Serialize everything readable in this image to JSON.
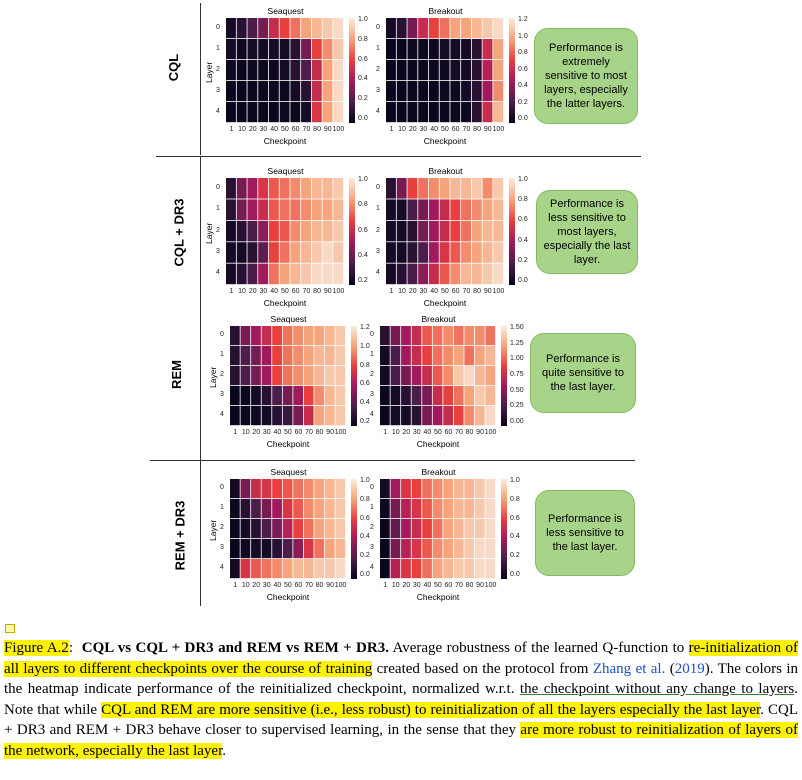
{
  "figure": {
    "rows": [
      {
        "label": "CQL",
        "note": "Performance is extremely sensitive to most layers, especially the latter layers.",
        "panels": [
          {
            "title": "Seaquest",
            "cbar_ticks": [
              "1.0",
              "0.8",
              "0.6",
              "0.4",
              "0.2",
              "0.0"
            ],
            "grid": [
              [
                0.05,
                0.1,
                0.2,
                0.3,
                0.5,
                0.6,
                0.7,
                0.8,
                0.85,
                0.9,
                0.95
              ],
              [
                0.05,
                0.03,
                0.05,
                0.05,
                0.05,
                0.05,
                0.1,
                0.3,
                0.6,
                0.75,
                0.9
              ],
              [
                0.03,
                0.02,
                0.03,
                0.03,
                0.03,
                0.05,
                0.1,
                0.2,
                0.5,
                0.8,
                0.95
              ],
              [
                0.02,
                0.02,
                0.02,
                0.02,
                0.03,
                0.03,
                0.05,
                0.1,
                0.5,
                0.8,
                0.95
              ],
              [
                0.02,
                0.02,
                0.02,
                0.02,
                0.02,
                0.03,
                0.03,
                0.05,
                0.55,
                0.8,
                0.95
              ]
            ]
          },
          {
            "title": "Breakout",
            "cbar_ticks": [
              "1.2",
              "1.0",
              "0.8",
              "0.6",
              "0.4",
              "0.2",
              "0.0"
            ],
            "grid": [
              [
                0.05,
                0.1,
                0.3,
                0.5,
                0.6,
                0.7,
                0.8,
                0.8,
                0.85,
                0.9,
                0.95
              ],
              [
                0.02,
                0.02,
                0.03,
                0.03,
                0.03,
                0.05,
                0.05,
                0.05,
                0.1,
                0.5,
                0.8
              ],
              [
                0.02,
                0.02,
                0.02,
                0.02,
                0.03,
                0.03,
                0.05,
                0.05,
                0.1,
                0.45,
                0.8
              ],
              [
                0.02,
                0.02,
                0.02,
                0.02,
                0.02,
                0.03,
                0.03,
                0.05,
                0.1,
                0.4,
                0.75
              ],
              [
                0.02,
                0.02,
                0.02,
                0.02,
                0.02,
                0.02,
                0.03,
                0.03,
                0.1,
                0.5,
                0.85
              ]
            ]
          }
        ]
      },
      {
        "label": "CQL + DR3",
        "note": "Performance is less sensitive to most layers, especially the last layer.",
        "panels": [
          {
            "title": "Seaquest",
            "cbar_ticks": [
              "1.0",
              "0.8",
              "0.6",
              "0.4",
              "0.2"
            ],
            "grid": [
              [
                0.1,
                0.3,
                0.4,
                0.55,
                0.65,
                0.7,
                0.75,
                0.8,
                0.85,
                0.85,
                0.9
              ],
              [
                0.1,
                0.3,
                0.4,
                0.5,
                0.65,
                0.7,
                0.7,
                0.75,
                0.8,
                0.8,
                0.85
              ],
              [
                0.05,
                0.1,
                0.2,
                0.35,
                0.6,
                0.65,
                0.75,
                0.8,
                0.85,
                0.85,
                0.9
              ],
              [
                0.05,
                0.05,
                0.1,
                0.25,
                0.6,
                0.7,
                0.8,
                0.85,
                0.9,
                0.95,
                0.9
              ],
              [
                0.05,
                0.1,
                0.2,
                0.4,
                0.7,
                0.8,
                0.85,
                0.9,
                0.95,
                0.95,
                0.95
              ]
            ]
          },
          {
            "title": "Breakout",
            "cbar_ticks": [
              "1.0",
              "0.8",
              "0.6",
              "0.4",
              "0.2",
              "0.0"
            ],
            "grid": [
              [
                0.1,
                0.3,
                0.6,
                0.7,
                0.75,
                0.8,
                0.85,
                0.85,
                0.9,
                0.75,
                0.9
              ],
              [
                0.05,
                0.05,
                0.2,
                0.3,
                0.4,
                0.5,
                0.6,
                0.7,
                0.75,
                0.8,
                0.85
              ],
              [
                0.05,
                0.05,
                0.1,
                0.3,
                0.4,
                0.5,
                0.6,
                0.7,
                0.8,
                0.85,
                0.85
              ],
              [
                0.05,
                0.05,
                0.1,
                0.2,
                0.4,
                0.55,
                0.65,
                0.75,
                0.8,
                0.85,
                0.9
              ],
              [
                0.05,
                0.1,
                0.2,
                0.35,
                0.5,
                0.65,
                0.75,
                0.85,
                0.85,
                0.9,
                0.95
              ]
            ]
          }
        ]
      },
      {
        "label": "REM",
        "note": "Performance is quite sensitive to the last layer.",
        "panels": [
          {
            "title": "Seaquest",
            "cbar_ticks": [
              "1.2",
              "1.0",
              "0.8",
              "0.6",
              "0.4",
              "0.2"
            ],
            "grid": [
              [
                0.1,
                0.3,
                0.4,
                0.5,
                0.6,
                0.7,
                0.75,
                0.8,
                0.8,
                0.85,
                0.9
              ],
              [
                0.1,
                0.2,
                0.3,
                0.4,
                0.6,
                0.7,
                0.75,
                0.8,
                0.85,
                0.85,
                0.9
              ],
              [
                0.1,
                0.2,
                0.3,
                0.4,
                0.6,
                0.7,
                0.75,
                0.8,
                0.85,
                0.9,
                0.9
              ],
              [
                0.02,
                0.02,
                0.05,
                0.1,
                0.2,
                0.3,
                0.4,
                0.6,
                0.75,
                0.85,
                0.9
              ],
              [
                0.02,
                0.02,
                0.03,
                0.05,
                0.1,
                0.15,
                0.3,
                0.5,
                0.8,
                0.85,
                0.9
              ]
            ]
          },
          {
            "title": "Breakout",
            "cbar_ticks": [
              "1.50",
              "1.25",
              "1.00",
              "0.75",
              "0.50",
              "0.25",
              "0.00"
            ],
            "grid": [
              [
                0.1,
                0.3,
                0.4,
                0.5,
                0.65,
                0.7,
                0.75,
                0.7,
                0.75,
                0.75,
                0.7
              ],
              [
                0.05,
                0.2,
                0.4,
                0.5,
                0.6,
                0.7,
                0.75,
                0.8,
                0.7,
                0.8,
                0.85
              ],
              [
                0.05,
                0.2,
                0.3,
                0.4,
                0.5,
                0.65,
                0.75,
                0.9,
                0.95,
                0.85,
                0.8
              ],
              [
                0.02,
                0.05,
                0.1,
                0.2,
                0.3,
                0.5,
                0.6,
                0.7,
                0.8,
                0.9,
                0.85
              ],
              [
                0.02,
                0.05,
                0.05,
                0.1,
                0.3,
                0.4,
                0.5,
                0.6,
                0.75,
                0.85,
                0.95
              ]
            ]
          }
        ]
      },
      {
        "label": "REM + DR3",
        "note": "Performance is less sensitive to the last layer.",
        "panels": [
          {
            "title": "Seaquest",
            "cbar_ticks": [
              "1.0",
              "0.8",
              "0.6",
              "0.4",
              "0.2",
              "0.0"
            ],
            "grid": [
              [
                0.05,
                0.3,
                0.5,
                0.55,
                0.6,
                0.65,
                0.7,
                0.75,
                0.8,
                0.85,
                0.9
              ],
              [
                0.03,
                0.1,
                0.2,
                0.3,
                0.4,
                0.55,
                0.65,
                0.75,
                0.8,
                0.85,
                0.9
              ],
              [
                0.03,
                0.05,
                0.1,
                0.2,
                0.3,
                0.45,
                0.6,
                0.7,
                0.8,
                0.85,
                0.9
              ],
              [
                0.02,
                0.03,
                0.05,
                0.05,
                0.1,
                0.2,
                0.35,
                0.55,
                0.7,
                0.8,
                0.85
              ],
              [
                0.05,
                0.55,
                0.65,
                0.7,
                0.75,
                0.8,
                0.85,
                0.85,
                0.9,
                0.9,
                0.95
              ]
            ]
          },
          {
            "title": "Breakout",
            "cbar_ticks": [
              "1.0",
              "0.8",
              "0.6",
              "0.4",
              "0.2",
              "0.0"
            ],
            "grid": [
              [
                0.05,
                0.4,
                0.55,
                0.6,
                0.7,
                0.75,
                0.8,
                0.85,
                0.85,
                0.9,
                0.95
              ],
              [
                0.03,
                0.3,
                0.45,
                0.55,
                0.65,
                0.75,
                0.8,
                0.85,
                0.85,
                0.9,
                0.95
              ],
              [
                0.02,
                0.25,
                0.4,
                0.5,
                0.6,
                0.7,
                0.8,
                0.85,
                0.9,
                0.9,
                0.95
              ],
              [
                0.02,
                0.3,
                0.45,
                0.55,
                0.65,
                0.75,
                0.8,
                0.85,
                0.9,
                0.95,
                0.95
              ],
              [
                0.02,
                0.45,
                0.55,
                0.6,
                0.7,
                0.8,
                0.85,
                0.9,
                0.9,
                0.95,
                0.95
              ]
            ]
          }
        ]
      }
    ],
    "xlabel": "Checkpoint",
    "ylabel": "Layer",
    "xticks": [
      "1",
      "10",
      "20",
      "30",
      "40",
      "50",
      "60",
      "70",
      "80",
      "90",
      "100"
    ],
    "yticks": [
      "0",
      "1",
      "2",
      "3",
      "4"
    ]
  },
  "caption": {
    "label": "Figure A.2",
    "colon": ":",
    "bold_title": "CQL vs CQL + DR3 and REM vs REM + DR3.",
    "t1": " Average robustness of the learned Q-function to ",
    "h1": "re-initialization of all layers to different checkpoints over the course of training",
    "t2": " created based on the protocol from ",
    "cite_author": "Zhang et al.",
    "cite_open": " (",
    "cite_year": "2019",
    "cite_close": ").",
    "t3": " The colors in the heatmap indicate performance of the reinitialized checkpoint, normalized w.r.t. ",
    "u1": "the checkpoint without any change to layers",
    "t4": ". Note that while ",
    "h2": "CQL and REM are more sensitive (i.e., less robust) to reinitialization of all the layers especially the last layer",
    "t5": ". CQL + DR3 and REM + DR3 behave closer to supervised learning, in the sense that they ",
    "h3": "are more robust to reinitialization of layers of the network, especially the last layer",
    "t6": "."
  }
}
